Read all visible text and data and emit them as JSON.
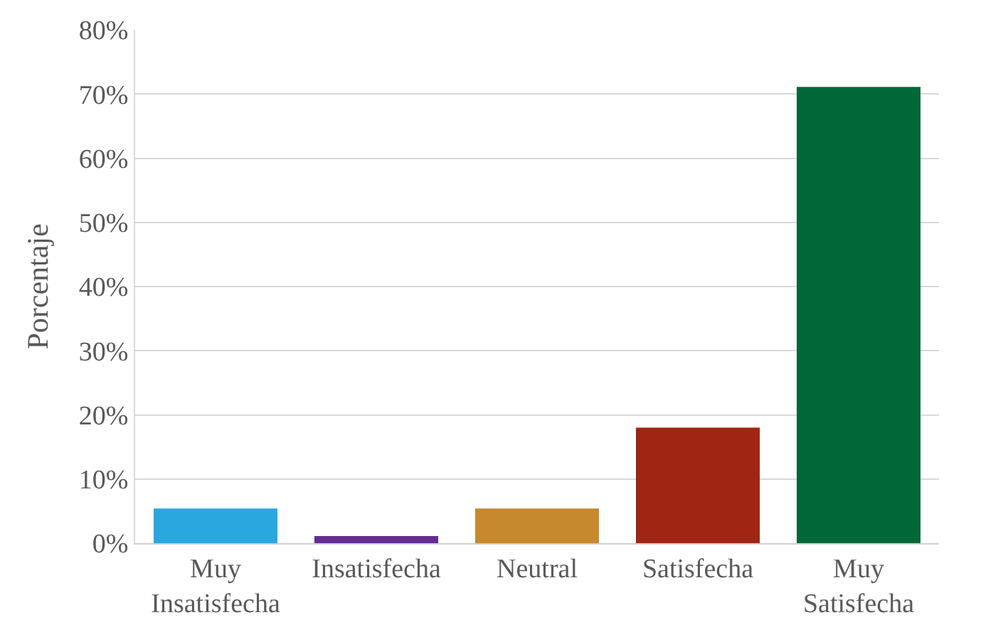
{
  "chart_data": {
    "type": "bar",
    "ylabel": "Porcentaje",
    "categories": [
      "Muy Insatisfecha",
      "Insatisfecha",
      "Neutral",
      "Satisfecha",
      "Muy Satisfecha"
    ],
    "values": [
      5.4,
      1.1,
      5.4,
      18.0,
      71.1
    ],
    "colors": [
      "#29a8e0",
      "#662d91",
      "#c6892e",
      "#a02513",
      "#006838"
    ],
    "ylim": [
      0,
      80
    ],
    "yticks": [
      {
        "value": 0,
        "label": "0%"
      },
      {
        "value": 10,
        "label": "10%"
      },
      {
        "value": 20,
        "label": "20%"
      },
      {
        "value": 30,
        "label": "30%"
      },
      {
        "value": 40,
        "label": "40%"
      },
      {
        "value": 50,
        "label": "50%"
      },
      {
        "value": 60,
        "label": "60%"
      },
      {
        "value": 70,
        "label": "70%"
      },
      {
        "value": 80,
        "label": "80%"
      }
    ],
    "grid": "y"
  }
}
